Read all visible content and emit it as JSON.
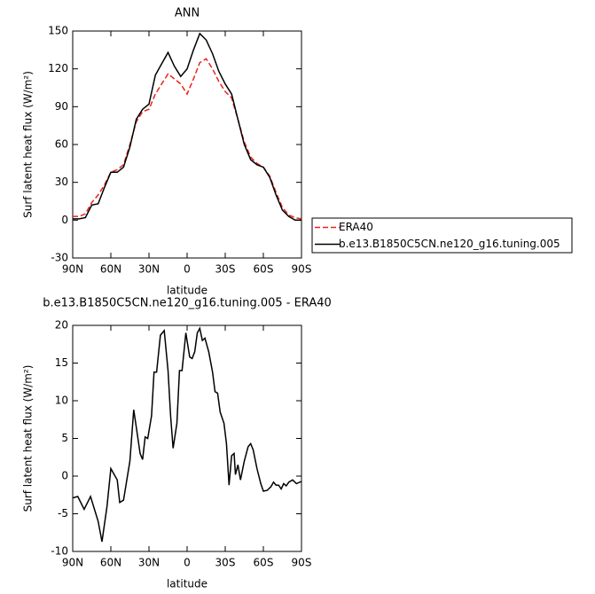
{
  "chart_data": [
    {
      "type": "line",
      "title": "ANN",
      "xlabel": "latitude",
      "ylabel": "Surf latent heat flux (W/m²)",
      "x": [
        90,
        85,
        80,
        75,
        70,
        65,
        60,
        55,
        50,
        45,
        40,
        35,
        30,
        25,
        20,
        15,
        10,
        5,
        0,
        -5,
        -10,
        -15,
        -20,
        -25,
        -30,
        -35,
        -40,
        -45,
        -50,
        -55,
        -60,
        -65,
        -70,
        -75,
        -80,
        -85,
        -90
      ],
      "series": [
        {
          "name": "ERA40",
          "color": "#e8231c",
          "line_style": "dashed",
          "values": [
            3,
            3,
            5,
            14,
            20,
            28,
            38,
            40,
            44,
            60,
            78,
            86,
            88,
            100,
            108,
            116,
            112,
            108,
            100,
            112,
            125,
            128,
            120,
            110,
            102,
            97,
            80,
            62,
            50,
            45,
            42,
            35,
            22,
            10,
            4,
            2,
            1
          ]
        },
        {
          "name": "b.e13.B1850C5CN.ne120_g16.tuning.005",
          "color": "#000000",
          "line_style": "solid",
          "values": [
            1,
            1,
            2,
            12,
            13,
            26,
            38,
            38,
            42,
            58,
            80,
            88,
            92,
            115,
            124,
            133,
            122,
            114,
            120,
            135,
            148,
            143,
            132,
            118,
            108,
            100,
            80,
            60,
            48,
            44,
            42,
            34,
            20,
            8,
            3,
            0,
            0
          ]
        }
      ],
      "xlim": [
        90,
        -90
      ],
      "xticks": [
        {
          "value": 90,
          "label": "90N"
        },
        {
          "value": 60,
          "label": "60N"
        },
        {
          "value": 30,
          "label": "30N"
        },
        0,
        {
          "value": -30,
          "label": "30S"
        },
        {
          "value": -60,
          "label": "60S"
        },
        {
          "value": -90,
          "label": "90S"
        }
      ],
      "ylim": [
        -30,
        150
      ],
      "yticks": [
        -30,
        0,
        30,
        60,
        90,
        120,
        150
      ],
      "legend": "right"
    },
    {
      "type": "line",
      "title": "b.e13.B1850C5CN.ne120_g16.tuning.005 - ERA40",
      "xlabel": "latitude",
      "ylabel": "Surf latent heat flux (W/m²)",
      "x": [
        90,
        86,
        81,
        76,
        70,
        67,
        63,
        60,
        55,
        53,
        50,
        45,
        42,
        40,
        37,
        35,
        33,
        31,
        28,
        26,
        24,
        21,
        18,
        15,
        13,
        11,
        8,
        6,
        4,
        1,
        -2,
        -4,
        -6,
        -8,
        -10,
        -12,
        -14,
        -17,
        -20,
        -22,
        -24,
        -26,
        -29,
        -31,
        -33,
        -35,
        -37,
        -38,
        -40,
        -42,
        -45,
        -48,
        -50,
        -52,
        -55,
        -58,
        -60,
        -63,
        -66,
        -68,
        -70,
        -72,
        -74,
        -76,
        -78,
        -80,
        -83,
        -86,
        -90
      ],
      "values": [
        -2.9,
        -2.7,
        -4.4,
        -2.7,
        -6,
        -8.7,
        -4,
        1,
        -0.5,
        -3.5,
        -3.2,
        2,
        8.8,
        6.5,
        3,
        2.2,
        5.2,
        5,
        8,
        13.8,
        13.8,
        18.7,
        19.3,
        14,
        8,
        3.7,
        7,
        14,
        14,
        19,
        15.8,
        15.6,
        16.5,
        19,
        19.6,
        18,
        18.3,
        16.5,
        13.8,
        11.2,
        11,
        8.5,
        7,
        4.3,
        -1.2,
        2.7,
        3,
        0.2,
        1.5,
        -0.5,
        2,
        3.9,
        4.3,
        3.5,
        1,
        -1,
        -2,
        -1.9,
        -1.4,
        -0.8,
        -1.2,
        -1.2,
        -1.7,
        -1,
        -1.3,
        -0.8,
        -0.5,
        -1,
        -0.7
      ],
      "color": "#000000",
      "xlim": [
        90,
        -90
      ],
      "xticks": [
        {
          "value": 90,
          "label": "90N"
        },
        {
          "value": 60,
          "label": "60N"
        },
        {
          "value": 30,
          "label": "30N"
        },
        0,
        {
          "value": -30,
          "label": "30S"
        },
        {
          "value": -60,
          "label": "60S"
        },
        {
          "value": -90,
          "label": "90S"
        }
      ],
      "ylim": [
        -10,
        20
      ],
      "yticks": [
        -10,
        -5,
        0,
        5,
        10,
        15,
        20
      ]
    }
  ]
}
